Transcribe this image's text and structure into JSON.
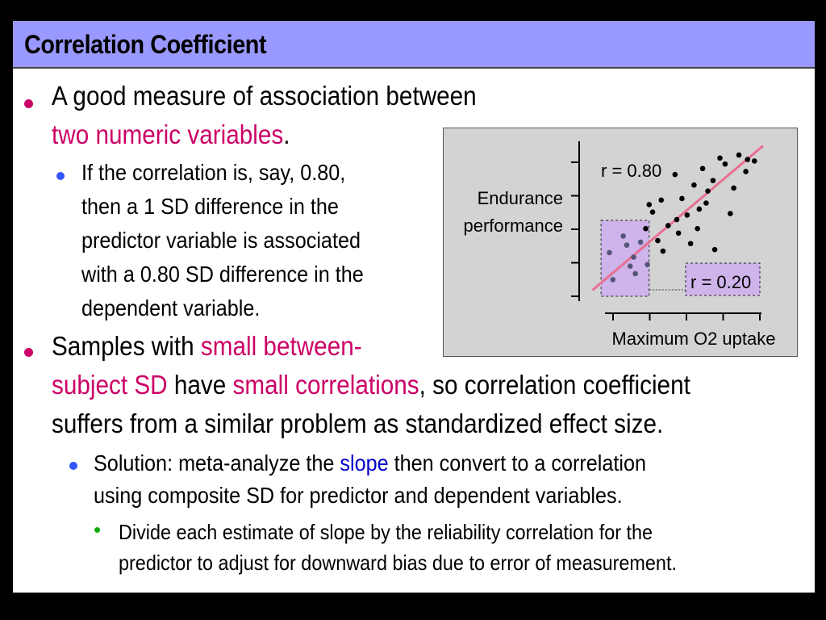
{
  "slide": {
    "title": "Correlation Coefficient",
    "bullet1": {
      "text_a": "A good measure of association between",
      "text_b_highlight": "two numeric variables",
      "text_b_end": "."
    },
    "bullet1_sub": {
      "line1": "If the correlation is, say, 0.80,",
      "line2": "then a 1 SD difference in the",
      "line3": "predictor variable is associated",
      "line4": "with a 0.80 SD difference in the",
      "line5": "dependent variable."
    },
    "bullet2": {
      "line1_a": "Samples with ",
      "line1_highlight": "small between-",
      "line2_highlight_a": "subject SD",
      "line2_mid": " have ",
      "line2_highlight_b": "small correlations",
      "line2_end": ", so correlation coefficient",
      "line3": "suffers from a similar problem as standardized effect size."
    },
    "bullet2_sub": {
      "line1_a": "Solution: meta-analyze the ",
      "line1_highlight": "slope",
      "line1_end": " then convert to a correlation",
      "line2": "using composite SD for predictor and dependent variables."
    },
    "bullet2_subsub": {
      "line1": "Divide each estimate of slope by the reliability correlation for the",
      "line2": "predictor to adjust for downward bias due to error of measurement."
    }
  },
  "colors": {
    "title_bar": "#9999ff",
    "highlight": "#cc0066",
    "slope_highlight": "#0000cc",
    "regression_line": "#e87090",
    "subset_box": "#cc99ff"
  },
  "chart_data": {
    "type": "scatter",
    "ylabel_line1": "Endurance",
    "ylabel_line2": "performance",
    "xlabel": "Maximum O2 uptake",
    "annotation_full": "r = 0.80",
    "annotation_subset": "r = 0.20",
    "xlim": [
      0,
      10
    ],
    "ylim": [
      0,
      10
    ],
    "points": [
      [
        1.1,
        2.8
      ],
      [
        2.1,
        3.3
      ],
      [
        1.3,
        1.0
      ],
      [
        2.3,
        1.9
      ],
      [
        1.9,
        3.9
      ],
      [
        2.6,
        1.4
      ],
      [
        2.9,
        3.5
      ],
      [
        3.3,
        2.0
      ],
      [
        3.6,
        5.5
      ],
      [
        3.9,
        3.6
      ],
      [
        4.2,
        2.9
      ],
      [
        4.5,
        4.6
      ],
      [
        4.9,
        8.0
      ],
      [
        5.3,
        6.4
      ],
      [
        5.6,
        5.3
      ],
      [
        6.0,
        7.3
      ],
      [
        6.2,
        4.4
      ],
      [
        6.5,
        8.4
      ],
      [
        6.8,
        6.9
      ],
      [
        7.1,
        7.6
      ],
      [
        7.5,
        9.1
      ],
      [
        7.8,
        8.7
      ],
      [
        8.1,
        5.4
      ],
      [
        8.6,
        9.3
      ],
      [
        9.0,
        8.2
      ],
      [
        9.5,
        8.9
      ],
      [
        3.2,
        4.4
      ],
      [
        4.1,
        6.3
      ],
      [
        5.1,
        4.1
      ],
      [
        5.8,
        3.4
      ],
      [
        6.3,
        5.7
      ],
      [
        7.2,
        3.0
      ],
      [
        8.3,
        7.1
      ],
      [
        2.5,
        2.5
      ],
      [
        9.1,
        9.0
      ],
      [
        3.4,
        6.0
      ],
      [
        5.0,
        5.0
      ],
      [
        6.7,
        6.1
      ]
    ],
    "subset_x_range": [
      0.8,
      3.4
    ],
    "regression": {
      "x": [
        0.3,
        10
      ],
      "y": [
        0.3,
        9.7
      ]
    }
  }
}
